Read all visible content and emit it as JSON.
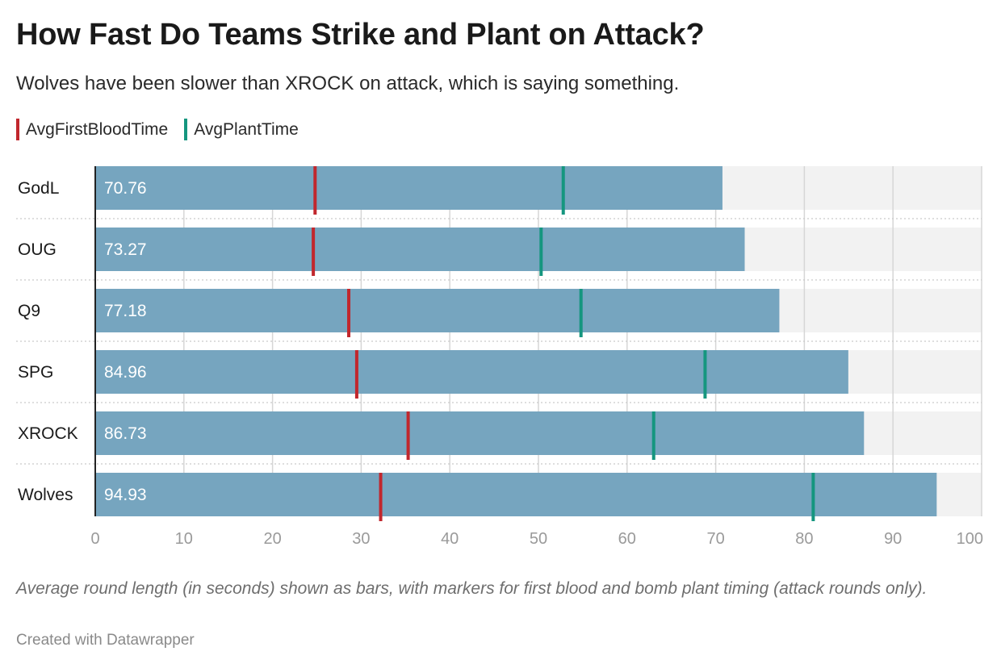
{
  "title": "How Fast Do Teams Strike and Plant on Attack?",
  "subtitle": "Wolves have been slower than XROCK on attack, which is saying something.",
  "legend": [
    {
      "label": "AvgFirstBloodTime",
      "color": "#c1272d"
    },
    {
      "label": "AvgPlantTime",
      "color": "#15967f"
    }
  ],
  "notes": "Average round length (in seconds) shown as bars, with markers for first blood and bomb plant timing (attack rounds only).",
  "byline": "Created with Datawrapper",
  "colors": {
    "bar": "#76a5bf",
    "background_track": "#f2f2f2",
    "first_blood": "#c1272d",
    "plant": "#15967f",
    "grid": "#d6d6d6"
  },
  "chart_data": {
    "type": "bar",
    "orientation": "horizontal",
    "title": "How Fast Do Teams Strike and Plant on Attack?",
    "categories": [
      "GodL",
      "OUG",
      "Q9",
      "SPG",
      "XROCK",
      "Wolves"
    ],
    "values": [
      70.76,
      73.27,
      77.18,
      84.96,
      86.73,
      94.93
    ],
    "value_labels": [
      "70.76",
      "73.27",
      "77.18",
      "84.96",
      "86.73",
      "94.93"
    ],
    "markers": [
      {
        "name": "AvgFirstBloodTime",
        "values": [
          24.8,
          24.6,
          28.6,
          29.5,
          35.3,
          32.2
        ]
      },
      {
        "name": "AvgPlantTime",
        "values": [
          52.8,
          50.3,
          54.8,
          68.8,
          63.0,
          81.0
        ]
      }
    ],
    "xlim": [
      0,
      100
    ],
    "xticks": [
      "0",
      "10",
      "20",
      "30",
      "40",
      "50",
      "60",
      "70",
      "80",
      "90",
      "100"
    ],
    "grid": true,
    "legend_position": "top-left"
  }
}
